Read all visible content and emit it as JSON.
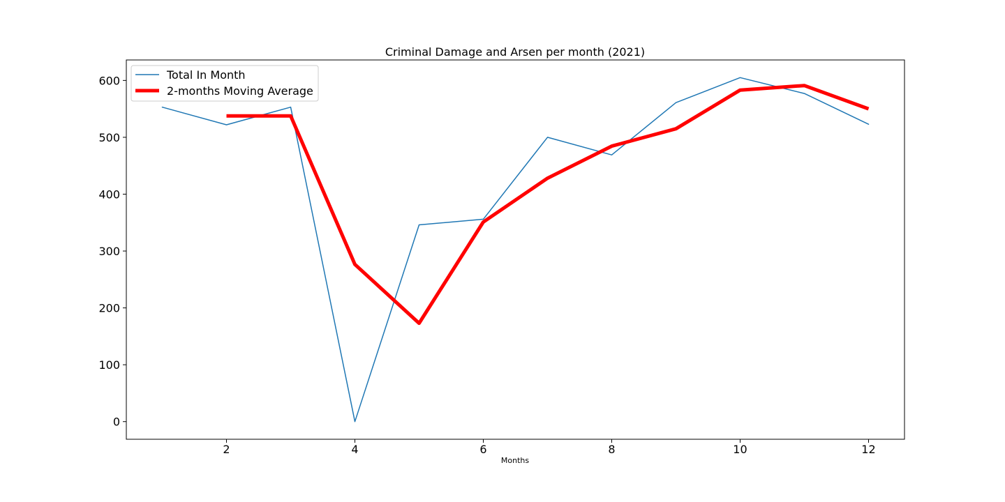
{
  "chart_data": {
    "type": "line",
    "title": "Criminal Damage and Arsen per month (2021)",
    "xlabel": "Months",
    "ylabel": "",
    "xlim": [
      0.44,
      12.56
    ],
    "ylim": [
      -31,
      636
    ],
    "xticks": [
      2,
      4,
      6,
      8,
      10,
      12
    ],
    "yticks": [
      0,
      100,
      200,
      300,
      400,
      500,
      600
    ],
    "grid": false,
    "legend_position": "upper-left",
    "series": [
      {
        "name": "Total In Month",
        "color": "#1f77b4",
        "line_width": "thin",
        "x": [
          1,
          2,
          3,
          4,
          5,
          6,
          7,
          8,
          9,
          10,
          11,
          12
        ],
        "y": [
          553,
          522,
          553,
          0,
          346,
          356,
          500,
          469,
          561,
          605,
          577,
          523
        ]
      },
      {
        "name": "2-months Moving Average",
        "color": "#ff0000",
        "line_width": "thick",
        "x": [
          2,
          3,
          4,
          5,
          6,
          7,
          8,
          9,
          10,
          11,
          12
        ],
        "y": [
          537.5,
          537.5,
          276.5,
          173,
          351,
          428,
          484.5,
          515,
          583,
          591,
          550
        ]
      }
    ]
  }
}
